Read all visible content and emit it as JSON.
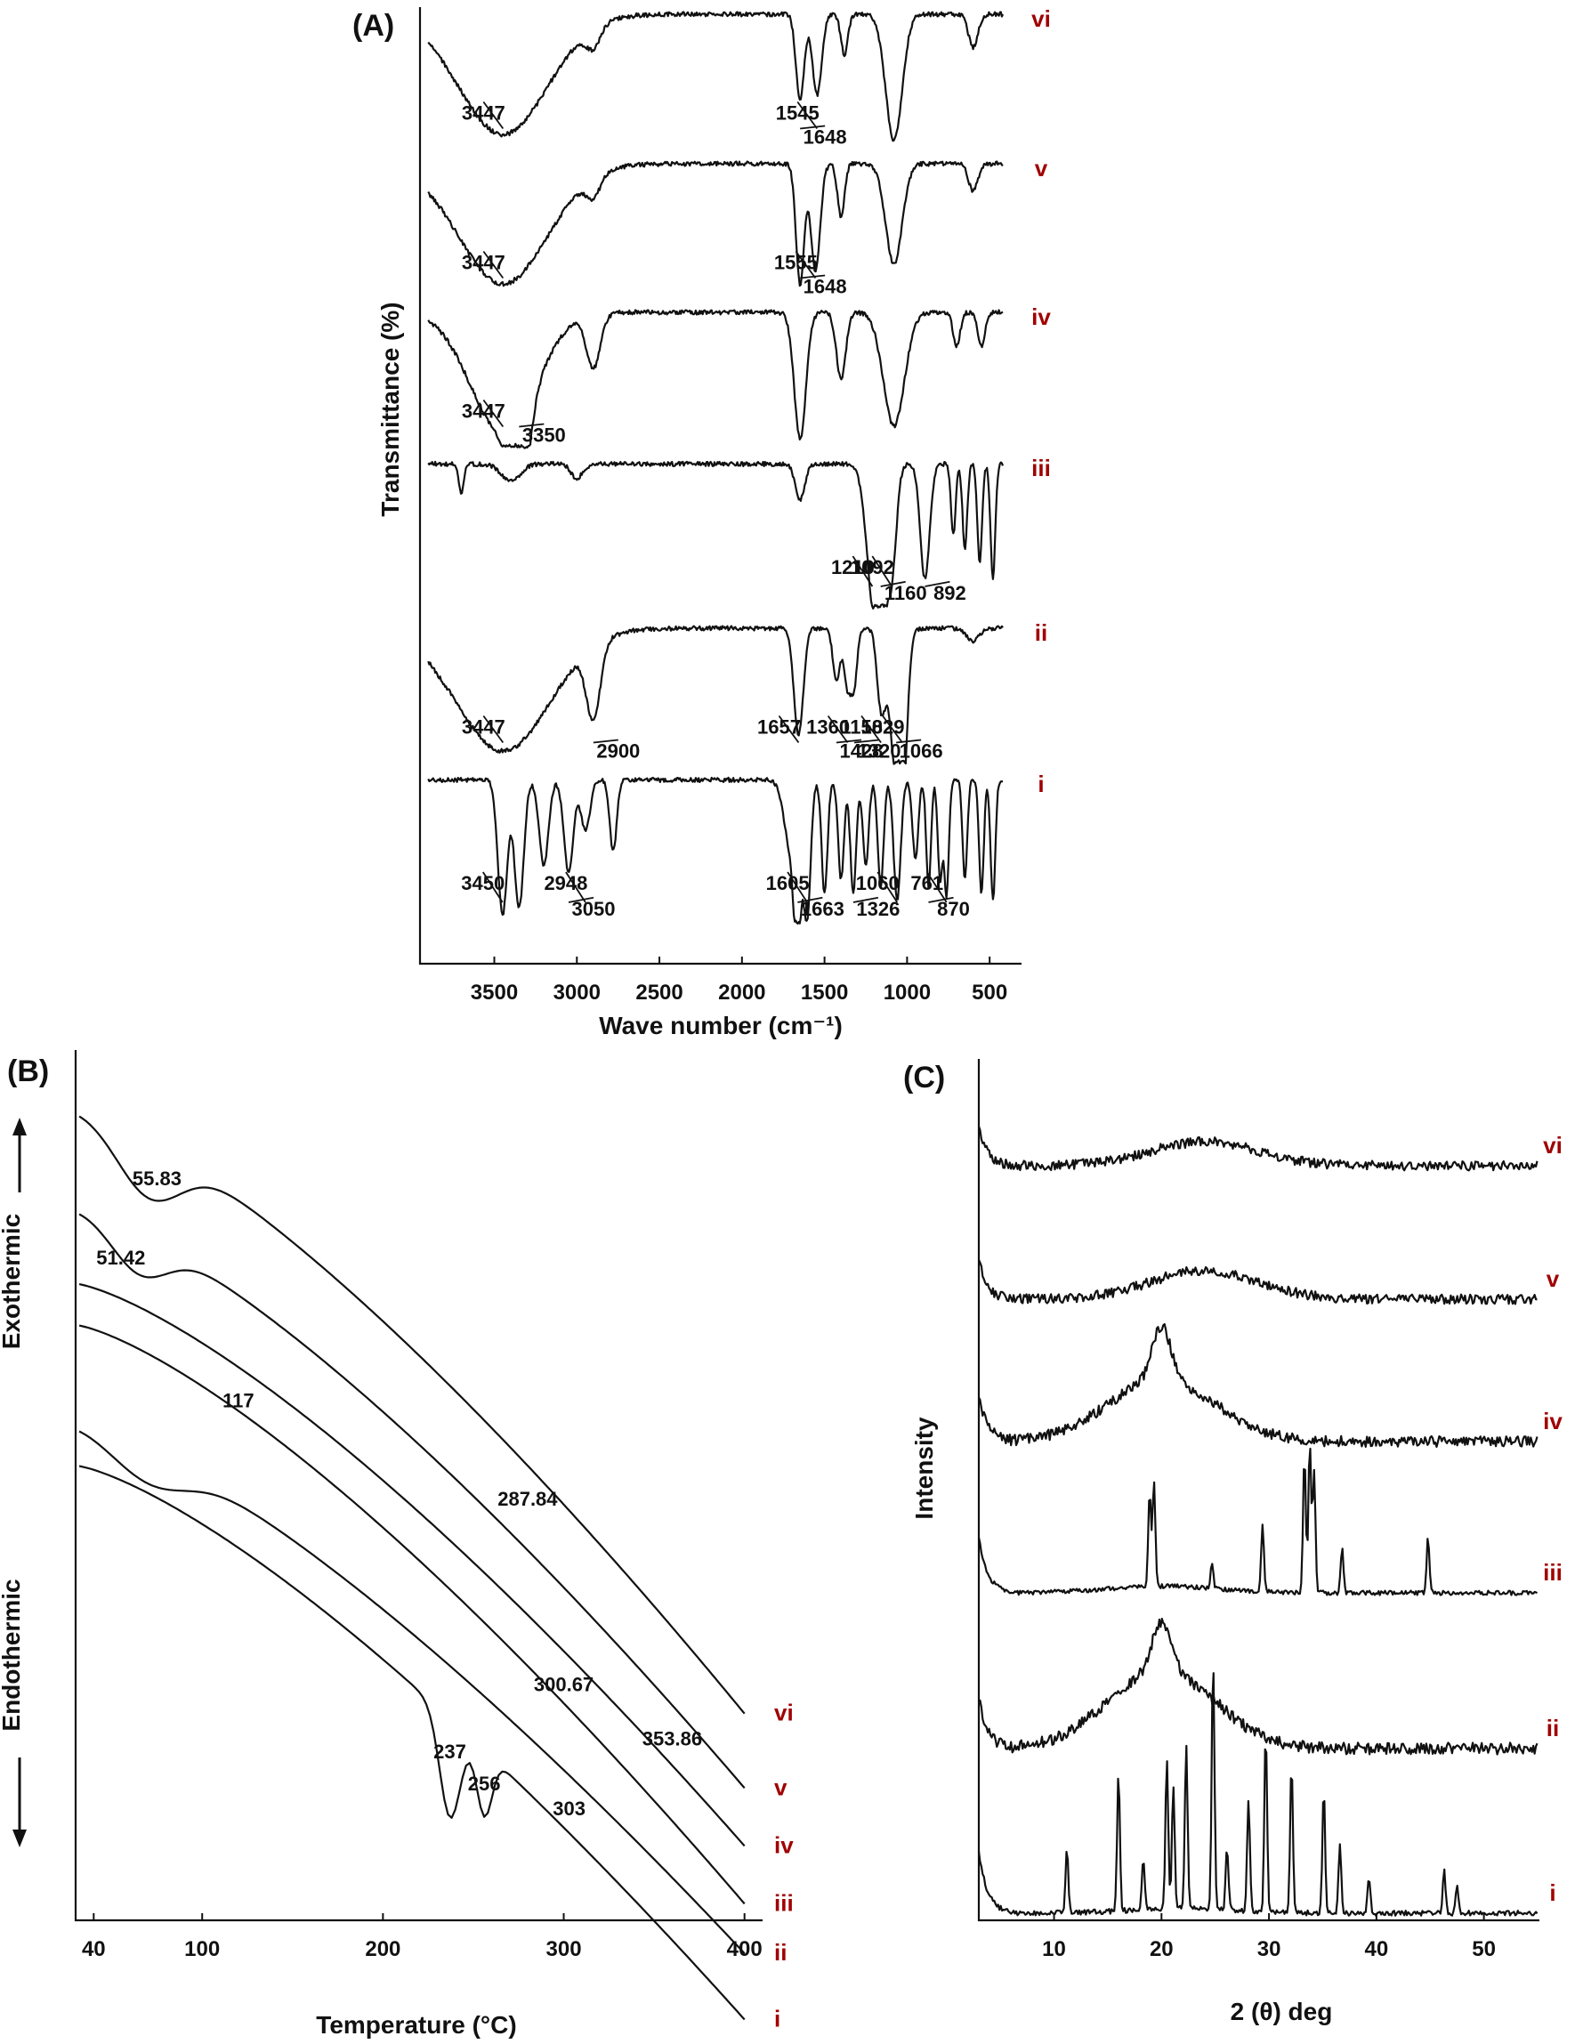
{
  "figure": {
    "trace_label_color": "#a00000",
    "line_color": "#111111"
  },
  "chart_data": [
    {
      "type": "line",
      "panel_label": "(A)",
      "xlabel": "Wave number (cm⁻¹)",
      "ylabel": "Transmittance (%)",
      "xlim": [
        3950,
        350
      ],
      "x_reversed": true,
      "xticks": [
        3500,
        3000,
        2500,
        2000,
        1500,
        1000,
        500
      ],
      "series": [
        {
          "name": "vi",
          "baseline": 0.96,
          "peaks": [
            [
              3447,
              0.9,
              380
            ],
            [
              2900,
              0.15,
              60
            ],
            [
              1648,
              0.65,
              35
            ],
            [
              1545,
              0.6,
              40
            ],
            [
              1380,
              0.3,
              30
            ],
            [
              1080,
              0.95,
              70
            ],
            [
              600,
              0.25,
              40
            ]
          ],
          "annotations": [
            {
              "text": "3447",
              "x": 3447
            },
            {
              "text": "1648",
              "x": 1648
            },
            {
              "text": "1545",
              "x": 1545
            }
          ]
        },
        {
          "name": "v",
          "baseline": 0.96,
          "peaks": [
            [
              3447,
              0.9,
              380
            ],
            [
              2900,
              0.15,
              60
            ],
            [
              1648,
              0.9,
              35
            ],
            [
              1555,
              0.8,
              40
            ],
            [
              1400,
              0.4,
              30
            ],
            [
              1080,
              0.75,
              70
            ],
            [
              600,
              0.2,
              40
            ]
          ],
          "annotations": [
            {
              "text": "3447",
              "x": 3447
            },
            {
              "text": "1648",
              "x": 1648
            },
            {
              "text": "1555",
              "x": 1555
            }
          ]
        },
        {
          "name": "iv",
          "baseline": 0.96,
          "peaks": [
            [
              3447,
              0.9,
              280
            ],
            [
              3350,
              0.7,
              80
            ],
            [
              2900,
              0.4,
              60
            ],
            [
              1648,
              0.95,
              50
            ],
            [
              1400,
              0.5,
              40
            ],
            [
              1080,
              0.85,
              90
            ],
            [
              700,
              0.25,
              30
            ],
            [
              550,
              0.25,
              30
            ]
          ],
          "annotations": [
            {
              "text": "3447",
              "x": 3447
            },
            {
              "text": "3350",
              "x": 3350
            }
          ]
        },
        {
          "name": "iii",
          "baseline": 0.96,
          "peaks": [
            [
              3700,
              0.2,
              20
            ],
            [
              3400,
              0.12,
              80
            ],
            [
              3000,
              0.1,
              50
            ],
            [
              1648,
              0.25,
              40
            ],
            [
              1210,
              0.75,
              60
            ],
            [
              1160,
              0.9,
              50
            ],
            [
              1092,
              0.7,
              40
            ],
            [
              892,
              0.8,
              40
            ],
            [
              720,
              0.5,
              20
            ],
            [
              650,
              0.6,
              20
            ],
            [
              560,
              0.7,
              20
            ],
            [
              480,
              0.8,
              20
            ]
          ],
          "annotations": [
            {
              "text": "1210",
              "x": 1210
            },
            {
              "text": "1160",
              "x": 1160
            },
            {
              "text": "1092",
              "x": 1092
            },
            {
              "text": "892",
              "x": 892
            }
          ]
        },
        {
          "name": "ii",
          "baseline": 0.96,
          "peaks": [
            [
              3447,
              0.92,
              400
            ],
            [
              2900,
              0.55,
              60
            ],
            [
              1657,
              0.8,
              40
            ],
            [
              1428,
              0.4,
              30
            ],
            [
              1360,
              0.45,
              30
            ],
            [
              1320,
              0.4,
              25
            ],
            [
              1158,
              0.55,
              35
            ],
            [
              1066,
              0.95,
              60
            ],
            [
              1029,
              0.85,
              40
            ],
            [
              600,
              0.1,
              50
            ]
          ],
          "annotations": [
            {
              "text": "3447",
              "x": 3447
            },
            {
              "text": "2900",
              "x": 2900
            },
            {
              "text": "1657",
              "x": 1657
            },
            {
              "text": "1428",
              "x": 1428
            },
            {
              "text": "1360",
              "x": 1360
            },
            {
              "text": "1320",
              "x": 1320
            },
            {
              "text": "1158",
              "x": 1158
            },
            {
              "text": "1066",
              "x": 1066
            },
            {
              "text": "1029",
              "x": 1029
            }
          ]
        },
        {
          "name": "i",
          "baseline": 0.96,
          "peaks": [
            [
              3450,
              0.95,
              40
            ],
            [
              3350,
              0.9,
              40
            ],
            [
              3200,
              0.6,
              40
            ],
            [
              3050,
              0.65,
              40
            ],
            [
              2948,
              0.35,
              40
            ],
            [
              2780,
              0.5,
              30
            ],
            [
              1700,
              0.5,
              60
            ],
            [
              1663,
              0.85,
              30
            ],
            [
              1605,
              0.95,
              30
            ],
            [
              1500,
              0.8,
              25
            ],
            [
              1400,
              0.7,
              25
            ],
            [
              1326,
              0.8,
              25
            ],
            [
              1250,
              0.6,
              25
            ],
            [
              1160,
              0.75,
              25
            ],
            [
              1060,
              0.85,
              30
            ],
            [
              950,
              0.55,
              25
            ],
            [
              870,
              0.75,
              20
            ],
            [
              800,
              0.7,
              20
            ],
            [
              761,
              0.8,
              20
            ],
            [
              650,
              0.7,
              20
            ],
            [
              550,
              0.8,
              20
            ],
            [
              480,
              0.85,
              20
            ]
          ],
          "annotations": [
            {
              "text": "3450",
              "x": 3450
            },
            {
              "text": "3050",
              "x": 3050
            },
            {
              "text": "2948",
              "x": 2948
            },
            {
              "text": "1663",
              "x": 1663
            },
            {
              "text": "1605",
              "x": 1605
            },
            {
              "text": "1326",
              "x": 1326
            },
            {
              "text": "1060",
              "x": 1060
            },
            {
              "text": "870",
              "x": 870
            },
            {
              "text": "761",
              "x": 761
            }
          ]
        }
      ]
    },
    {
      "type": "line",
      "panel_label": "(B)",
      "xlabel": "Temperature (°C)",
      "ylabel_top": "Exothermic",
      "ylabel_bottom": "Endothermic",
      "xlim": [
        30,
        410
      ],
      "xticks": [
        40,
        100,
        200,
        300,
        400
      ],
      "series": [
        {
          "name": "vi",
          "start": 0.98,
          "end": 0.25,
          "events": [
            [
              70,
              0.07,
              25
            ]
          ],
          "annotations": [
            {
              "text": "55.83",
              "x": 75
            },
            {
              "text": "287.84",
              "x": 280
            }
          ]
        },
        {
          "name": "v",
          "start": 0.86,
          "end": 0.16,
          "events": [
            [
              65,
              0.05,
              22
            ]
          ],
          "annotations": [
            {
              "text": "51.42",
              "x": 55
            },
            {
              "text": "353.86",
              "x": 360
            }
          ]
        },
        {
          "name": "iv",
          "start": 0.77,
          "end": 0.09,
          "events": [],
          "annotations": [
            {
              "text": "117",
              "x": 120
            },
            {
              "text": "300.67",
              "x": 300
            }
          ]
        },
        {
          "name": "iii",
          "start": 0.72,
          "end": 0.02,
          "events": [],
          "annotations": []
        },
        {
          "name": "ii",
          "start": 0.6,
          "end": -0.04,
          "events": [
            [
              70,
              0.04,
              30
            ]
          ],
          "annotations": [
            {
              "text": "303",
              "x": 303
            }
          ]
        },
        {
          "name": "i",
          "start": 0.55,
          "end": -0.12,
          "events": [
            [
              237,
              0.12,
              8
            ],
            [
              256,
              0.08,
              6
            ]
          ],
          "annotations": [
            {
              "text": "237",
              "x": 237
            },
            {
              "text": "256",
              "x": 256
            }
          ]
        }
      ]
    },
    {
      "type": "line",
      "panel_label": "(C)",
      "xlabel": "2 (θ) deg",
      "ylabel": "Intensity",
      "xlim": [
        3,
        55
      ],
      "xticks": [
        10,
        20,
        30,
        40,
        50
      ],
      "series": [
        {
          "name": "vi",
          "kind": "amorphous",
          "halo_center": 24,
          "halo_height": 0.15,
          "peaks": []
        },
        {
          "name": "v",
          "kind": "amorphous",
          "halo_center": 24,
          "halo_height": 0.18,
          "peaks": []
        },
        {
          "name": "iv",
          "kind": "amorphous",
          "halo_center": 20,
          "halo_height": 0.35,
          "peaks": [
            [
              20,
              0.3
            ]
          ]
        },
        {
          "name": "iii",
          "kind": "crystalline",
          "halo_center": 20,
          "halo_height": 0.03,
          "peaks": [
            [
              18.9,
              0.42
            ],
            [
              19.3,
              0.48
            ],
            [
              24.7,
              0.12
            ],
            [
              29.4,
              0.3
            ],
            [
              33.3,
              0.62
            ],
            [
              33.8,
              0.68
            ],
            [
              34.2,
              0.55
            ],
            [
              36.8,
              0.2
            ],
            [
              44.8,
              0.25
            ]
          ]
        },
        {
          "name": "ii",
          "kind": "amorphous",
          "halo_center": 20,
          "halo_height": 0.4,
          "peaks": [
            [
              20,
              0.25
            ]
          ]
        },
        {
          "name": "i",
          "kind": "crystalline",
          "halo_center": 22,
          "halo_height": 0.02,
          "peaks": [
            [
              11.2,
              0.25
            ],
            [
              16,
              0.55
            ],
            [
              18.3,
              0.2
            ],
            [
              20.5,
              0.6
            ],
            [
              21.1,
              0.5
            ],
            [
              22.3,
              0.65
            ],
            [
              24.8,
              1.0
            ],
            [
              26.1,
              0.25
            ],
            [
              28.1,
              0.45
            ],
            [
              29.7,
              0.72
            ],
            [
              32.1,
              0.6
            ],
            [
              35.1,
              0.5
            ],
            [
              36.6,
              0.28
            ],
            [
              39.3,
              0.15
            ],
            [
              46.3,
              0.18
            ],
            [
              47.5,
              0.12
            ]
          ]
        }
      ]
    }
  ]
}
